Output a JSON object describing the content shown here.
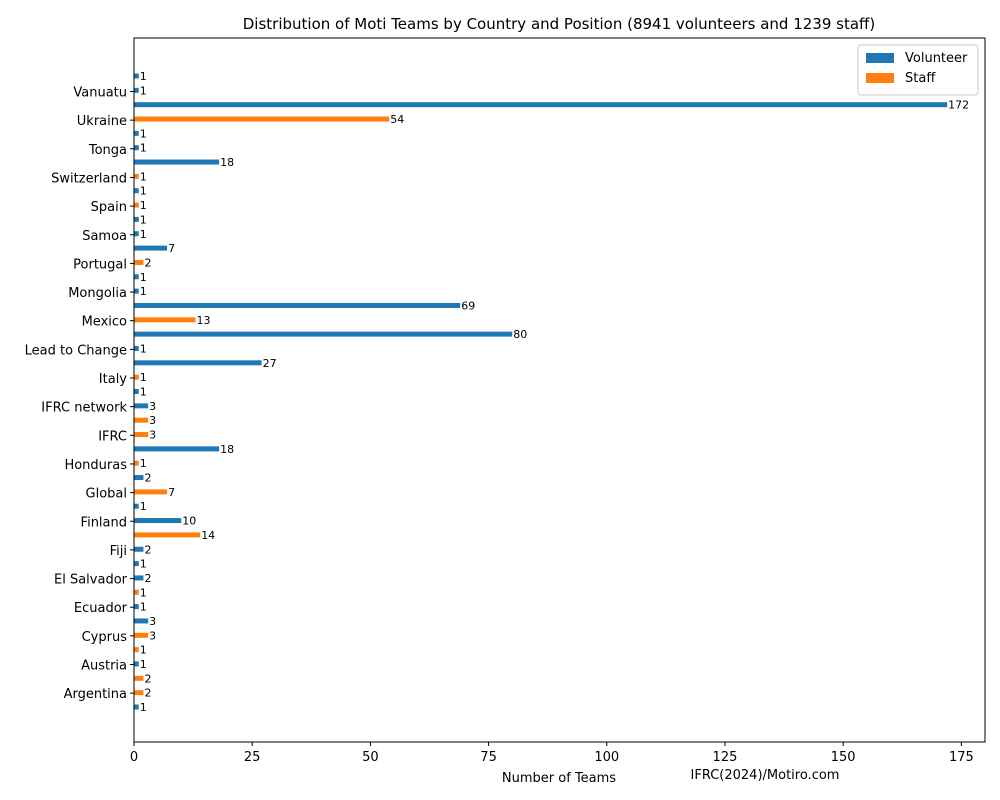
{
  "chart_data": {
    "type": "bar",
    "orientation": "horizontal",
    "title": "Distribution of Moti Teams by Country and Position (8941 volunteers and 1239 staff)",
    "xlabel": "Number of Teams",
    "ylabel": "",
    "credit": "IFRC(2024)/Motiro.com",
    "xlim": [
      0,
      180
    ],
    "xticks": [
      0,
      25,
      50,
      75,
      100,
      125,
      150,
      175
    ],
    "legend": {
      "placement": "top-right",
      "entries": [
        {
          "name": "Volunteer",
          "color": "#1f77b4"
        },
        {
          "name": "Staff",
          "color": "#ff7f0e"
        }
      ]
    },
    "categories": [
      "Vanuatu",
      "Ukraine",
      "Tonga",
      "Switzerland",
      "Spain",
      "Samoa",
      "Portugal",
      "Mongolia",
      "Mexico",
      "Lead to Change",
      "Italy",
      "IFRC network",
      "IFRC",
      "Honduras",
      "Global",
      "Finland",
      "Fiji",
      "El Salvador",
      "Ecuador",
      "Cyprus",
      "Austria",
      "Argentina"
    ],
    "bars": [
      {
        "series": "Volunteer",
        "value": 1
      },
      {
        "series": "Volunteer",
        "value": 1
      },
      {
        "series": "Volunteer",
        "value": 172
      },
      {
        "series": "Staff",
        "value": 54
      },
      {
        "series": "Volunteer",
        "value": 1
      },
      {
        "series": "Volunteer",
        "value": 1
      },
      {
        "series": "Volunteer",
        "value": 18
      },
      {
        "series": "Staff",
        "value": 1
      },
      {
        "series": "Volunteer",
        "value": 1
      },
      {
        "series": "Staff",
        "value": 1
      },
      {
        "series": "Volunteer",
        "value": 1
      },
      {
        "series": "Volunteer",
        "value": 1
      },
      {
        "series": "Volunteer",
        "value": 7
      },
      {
        "series": "Staff",
        "value": 2
      },
      {
        "series": "Volunteer",
        "value": 1
      },
      {
        "series": "Volunteer",
        "value": 1
      },
      {
        "series": "Volunteer",
        "value": 69
      },
      {
        "series": "Staff",
        "value": 13
      },
      {
        "series": "Volunteer",
        "value": 80
      },
      {
        "series": "Volunteer",
        "value": 1
      },
      {
        "series": "Volunteer",
        "value": 27
      },
      {
        "series": "Staff",
        "value": 1
      },
      {
        "series": "Volunteer",
        "value": 1
      },
      {
        "series": "Volunteer",
        "value": 3
      },
      {
        "series": "Staff",
        "value": 3
      },
      {
        "series": "Staff",
        "value": 3
      },
      {
        "series": "Volunteer",
        "value": 18
      },
      {
        "series": "Staff",
        "value": 1
      },
      {
        "series": "Volunteer",
        "value": 2
      },
      {
        "series": "Staff",
        "value": 7
      },
      {
        "series": "Volunteer",
        "value": 1
      },
      {
        "series": "Volunteer",
        "value": 10
      },
      {
        "series": "Staff",
        "value": 14
      },
      {
        "series": "Volunteer",
        "value": 2
      },
      {
        "series": "Volunteer",
        "value": 1
      },
      {
        "series": "Volunteer",
        "value": 2
      },
      {
        "series": "Staff",
        "value": 1
      },
      {
        "series": "Volunteer",
        "value": 1
      },
      {
        "series": "Volunteer",
        "value": 3
      },
      {
        "series": "Staff",
        "value": 3
      },
      {
        "series": "Staff",
        "value": 1
      },
      {
        "series": "Volunteer",
        "value": 1
      },
      {
        "series": "Staff",
        "value": 2
      },
      {
        "series": "Staff",
        "value": 2
      },
      {
        "series": "Volunteer",
        "value": 1
      }
    ]
  }
}
